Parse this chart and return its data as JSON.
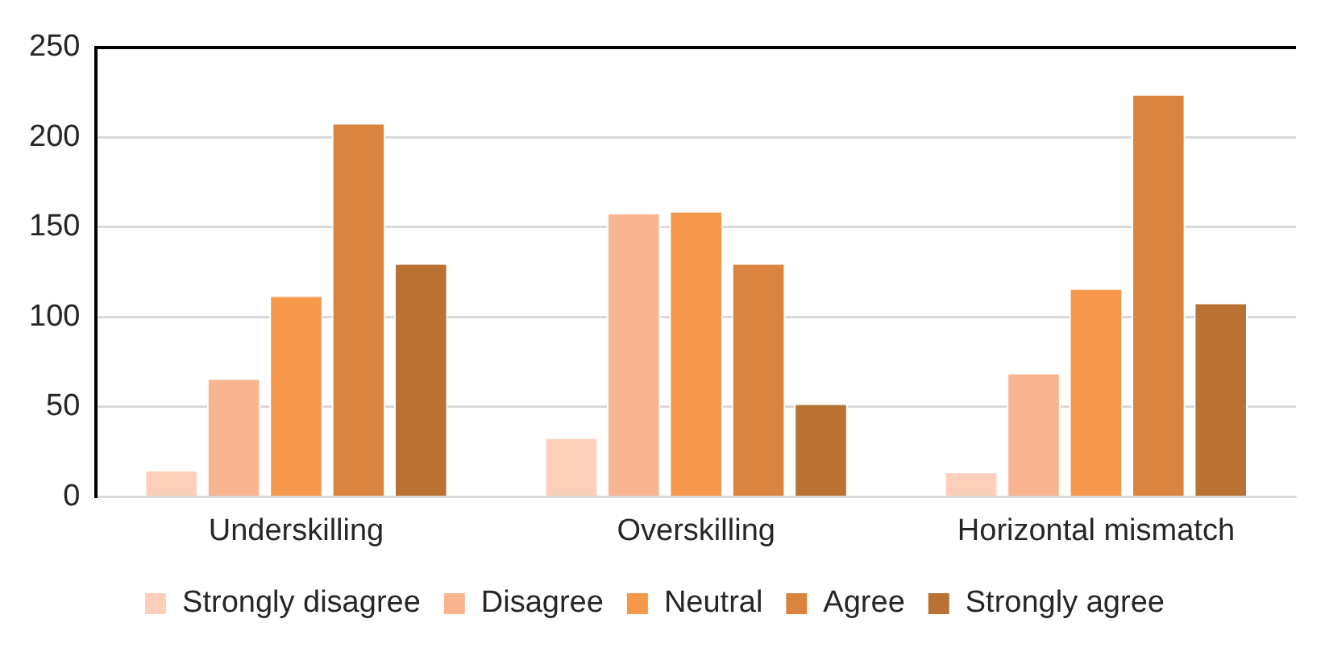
{
  "chart_data": {
    "type": "bar",
    "categories": [
      "Underskilling",
      "Overskilling",
      "Horizontal mismatch"
    ],
    "series": [
      {
        "name": "Strongly disagree",
        "color": "#fbcfb9",
        "values": [
          15,
          33,
          14
        ]
      },
      {
        "name": "Disagree",
        "color": "#f8b590",
        "values": [
          66,
          158,
          69
        ]
      },
      {
        "name": "Neutral",
        "color": "#f5984a",
        "values": [
          112,
          159,
          116
        ]
      },
      {
        "name": "Agree",
        "color": "#db843f",
        "values": [
          208,
          130,
          224
        ]
      },
      {
        "name": "Strongly agree",
        "color": "#b97134",
        "values": [
          130,
          52,
          108
        ]
      }
    ],
    "ylim": [
      0,
      250
    ],
    "yticks": [
      0,
      50,
      100,
      150,
      200,
      250
    ],
    "grid": "y",
    "legend": "bottom"
  }
}
